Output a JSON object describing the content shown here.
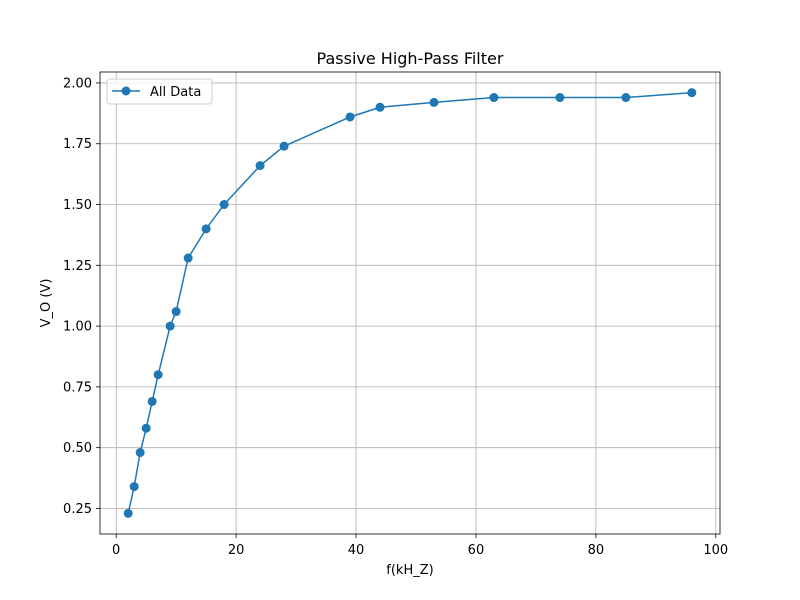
{
  "chart_data": {
    "type": "line",
    "title": "Passive High-Pass Filter",
    "xlabel": "f(kH_Z)",
    "ylabel": "V_O (V)",
    "xlim": [
      -2.7,
      100.7
    ],
    "ylim": [
      0.145,
      2.045
    ],
    "xticks": [
      0,
      20,
      40,
      60,
      80,
      100
    ],
    "xtick_labels": [
      "0",
      "20",
      "40",
      "60",
      "80",
      "100"
    ],
    "yticks": [
      0.25,
      0.5,
      0.75,
      1.0,
      1.25,
      1.5,
      1.75,
      2.0
    ],
    "ytick_labels": [
      "0.25",
      "0.50",
      "0.75",
      "1.00",
      "1.25",
      "1.50",
      "1.75",
      "2.00"
    ],
    "grid": true,
    "legend_position": "upper-left",
    "series": [
      {
        "name": "All Data",
        "color": "#1f77b4",
        "marker": "circle",
        "x": [
          2,
          3,
          4,
          5,
          6,
          7,
          9,
          10,
          12,
          15,
          18,
          24,
          28,
          39,
          44,
          53,
          63,
          74,
          85,
          96
        ],
        "y": [
          0.23,
          0.34,
          0.48,
          0.58,
          0.69,
          0.8,
          1.0,
          1.06,
          1.28,
          1.4,
          1.5,
          1.66,
          1.74,
          1.86,
          1.9,
          1.92,
          1.94,
          1.94,
          1.94,
          1.96
        ]
      }
    ]
  }
}
